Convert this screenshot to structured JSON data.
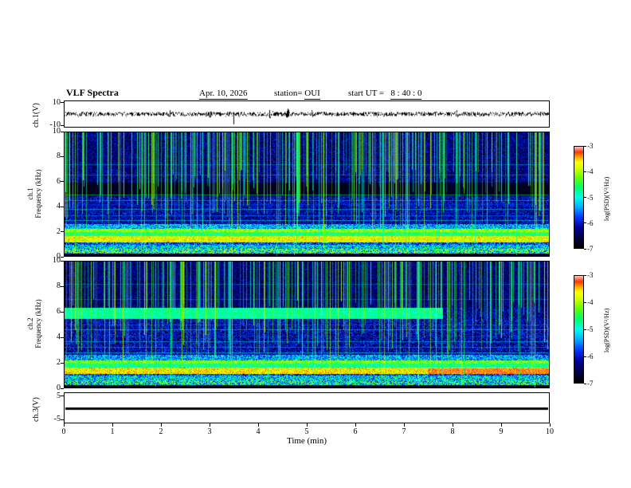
{
  "header": {
    "title": "VLF Spectra",
    "date": "Apr. 10, 2026",
    "station_prefix": "station=",
    "station_value": "OUI",
    "ut_prefix": "start UT = ",
    "ut_value": "8 : 40 : 0"
  },
  "x_axis": {
    "label": "Time (min)",
    "ticks": [
      "0",
      "1",
      "2",
      "3",
      "4",
      "5",
      "6",
      "7",
      "8",
      "9",
      "10"
    ],
    "range": [
      0,
      10
    ]
  },
  "panels": {
    "ch1_wave": {
      "ylabel": "ch.1(V)",
      "ylim": [
        -10,
        10
      ],
      "yticks": [
        {
          "v": "10",
          "f": 0.08
        },
        {
          "v": "-10",
          "f": 0.92
        }
      ]
    },
    "ch1_spec": {
      "ylabel_lines": [
        "ch.1",
        "Frequency (kHz)"
      ],
      "ylim": [
        0,
        10
      ],
      "yticks": [
        {
          "v": "10",
          "f": 0
        },
        {
          "v": "8",
          "f": 0.2
        },
        {
          "v": "6",
          "f": 0.4
        },
        {
          "v": "4",
          "f": 0.6
        },
        {
          "v": "2",
          "f": 0.8
        },
        {
          "v": "0",
          "f": 1
        }
      ]
    },
    "ch2_spec": {
      "ylabel_lines": [
        "ch.2",
        "Frequency (kHz)"
      ],
      "ylim": [
        0,
        10
      ],
      "yticks": [
        {
          "v": "10",
          "f": 0
        },
        {
          "v": "8",
          "f": 0.2
        },
        {
          "v": "6",
          "f": 0.4
        },
        {
          "v": "4",
          "f": 0.6
        },
        {
          "v": "2",
          "f": 0.8
        },
        {
          "v": "0",
          "f": 1
        }
      ]
    },
    "ch3": {
      "ylabel": "ch.3(V)",
      "ylim": [
        -5,
        5
      ],
      "yticks": [
        {
          "v": "5",
          "f": 0.12
        },
        {
          "v": "-5",
          "f": 0.88
        }
      ]
    }
  },
  "colorbars": [
    {
      "label": "log(PSD)(V²/Hz)",
      "ticks": [
        {
          "v": "-3",
          "f": 0
        },
        {
          "v": "-4",
          "f": 0.25
        },
        {
          "v": "-5",
          "f": 0.5
        },
        {
          "v": "-6",
          "f": 0.75
        },
        {
          "v": "-7",
          "f": 1
        }
      ]
    },
    {
      "label": "log(PSD)(V²/Hz)",
      "ticks": [
        {
          "v": "-3",
          "f": 0
        },
        {
          "v": "-4",
          "f": 0.25
        },
        {
          "v": "-5",
          "f": 0.5
        },
        {
          "v": "-6",
          "f": 0.75
        },
        {
          "v": "-7",
          "f": 1
        }
      ]
    }
  ],
  "spectrogram_palette": [
    {
      "t": 0.0,
      "c": "#000000"
    },
    {
      "t": 0.1,
      "c": "#000044"
    },
    {
      "t": 0.2,
      "c": "#000099"
    },
    {
      "t": 0.3,
      "c": "#0033ff"
    },
    {
      "t": 0.4,
      "c": "#00aaff"
    },
    {
      "t": 0.5,
      "c": "#00ffee"
    },
    {
      "t": 0.6,
      "c": "#00ff66"
    },
    {
      "t": 0.7,
      "c": "#66ff00"
    },
    {
      "t": 0.78,
      "c": "#ccff00"
    },
    {
      "t": 0.85,
      "c": "#ffff00"
    },
    {
      "t": 0.9,
      "c": "#ffaa00"
    },
    {
      "t": 0.95,
      "c": "#ff3300"
    },
    {
      "t": 1.0,
      "c": "#ffbbbb"
    }
  ],
  "chart_data": [
    {
      "type": "line",
      "name": "ch1_waveform",
      "ylabel": "ch.1(V)",
      "xlim": [
        0,
        10
      ],
      "ylim": [
        -10,
        10
      ],
      "base_amplitude_v": 1.7,
      "bursts": [
        {
          "pos": 0.218,
          "width": 0.014,
          "amp": 3.6
        },
        {
          "pos": 0.3,
          "width": 0.01,
          "amp": 3.0
        },
        {
          "pos": 0.425,
          "width": 0.012,
          "amp": 4.2
        },
        {
          "pos": 0.46,
          "width": 0.01,
          "amp": 4.5
        },
        {
          "pos": 0.51,
          "width": 0.008,
          "amp": 3.2
        },
        {
          "pos": 0.81,
          "width": 0.012,
          "amp": 3.4
        }
      ],
      "spikes": [
        {
          "pos": 0.348,
          "v": -8
        }
      ]
    },
    {
      "type": "heatmap",
      "name": "ch1_spectrogram",
      "ylabel": "ch.1 Frequency (kHz)",
      "xlabel": "Time (min)",
      "xlim": [
        0,
        10
      ],
      "ylim": [
        0,
        10
      ],
      "colorbar": {
        "label": "log(PSD)(V²/Hz)",
        "ticks": [
          -3,
          -4,
          -5,
          -6,
          -7
        ]
      },
      "base_level": 0.17,
      "noise": 0.1,
      "bands": [
        {
          "f0": 0.0,
          "f1": 0.25,
          "level": 0.06,
          "var": 0.05
        },
        {
          "f0": 0.25,
          "f1": 0.6,
          "level": 0.55,
          "var": 0.3
        },
        {
          "f0": 0.6,
          "f1": 0.95,
          "level": 0.45,
          "var": 0.22
        },
        {
          "f0": 0.95,
          "f1": 1.15,
          "level": 0.3,
          "var": 0.18
        },
        {
          "f0": 1.15,
          "f1": 1.65,
          "level": 0.82,
          "var": 0.1
        },
        {
          "f0": 1.65,
          "f1": 1.95,
          "level": 0.6,
          "var": 0.12
        },
        {
          "f0": 1.95,
          "f1": 2.25,
          "level": 0.72,
          "var": 0.1
        },
        {
          "f0": 2.25,
          "f1": 2.6,
          "level": 0.42,
          "var": 0.18
        },
        {
          "f0": 2.6,
          "f1": 4.85,
          "level": 0.2,
          "var": 0.14
        },
        {
          "f0": 4.85,
          "f1": 5.95,
          "level": 0.05,
          "var": 0.05
        },
        {
          "f0": 5.95,
          "f1": 10.01,
          "level": 0.16,
          "var": 0.13
        }
      ],
      "hlines": [
        {
          "f": 2.9,
          "level": 0.5,
          "alpha": 0.5
        },
        {
          "f": 3.3,
          "level": 0.35,
          "alpha": 0.6
        },
        {
          "f": 3.8,
          "level": 0.45,
          "alpha": 0.5
        },
        {
          "f": 4.2,
          "level": 0.3,
          "alpha": 0.6
        },
        {
          "f": 4.5,
          "level": 0.55,
          "alpha": 0.4
        },
        {
          "f": 5.0,
          "level": 0.6,
          "alpha": 0.5
        },
        {
          "f": 6.6,
          "level": 0.4,
          "alpha": 0.4
        },
        {
          "f": 7.4,
          "level": 0.45,
          "alpha": 0.35
        }
      ],
      "vstreaks": {
        "count": 300,
        "level_min": 0.5,
        "level_max": 0.78
      }
    },
    {
      "type": "heatmap",
      "name": "ch2_spectrogram",
      "ylabel": "ch.2 Frequency (kHz)",
      "xlabel": "Time (min)",
      "xlim": [
        0,
        10
      ],
      "ylim": [
        0,
        10
      ],
      "colorbar": {
        "label": "log(PSD)(V²/Hz)",
        "ticks": [
          -3,
          -4,
          -5,
          -6,
          -7
        ]
      },
      "base_level": 0.17,
      "noise": 0.1,
      "bands": [
        {
          "f0": 0.0,
          "f1": 0.25,
          "level": 0.06,
          "var": 0.05
        },
        {
          "f0": 0.25,
          "f1": 0.6,
          "level": 0.5,
          "var": 0.3
        },
        {
          "f0": 0.6,
          "f1": 0.95,
          "level": 0.45,
          "var": 0.22
        },
        {
          "f0": 0.95,
          "f1": 1.1,
          "level": 0.3,
          "var": 0.18
        },
        {
          "f0": 1.1,
          "f1": 1.6,
          "level": 0.84,
          "var": 0.1
        },
        {
          "f0": 1.1,
          "f1": 1.55,
          "level": 0.93,
          "var": 0.06,
          "xmin": 0.75
        },
        {
          "f0": 1.6,
          "f1": 1.95,
          "level": 0.58,
          "var": 0.12
        },
        {
          "f0": 1.95,
          "f1": 2.2,
          "level": 0.7,
          "var": 0.1
        },
        {
          "f0": 2.2,
          "f1": 2.6,
          "level": 0.4,
          "var": 0.18
        },
        {
          "f0": 2.6,
          "f1": 5.45,
          "level": 0.2,
          "var": 0.15
        },
        {
          "f0": 5.45,
          "f1": 6.35,
          "level": 0.56,
          "var": 0.08,
          "xmax": 0.78
        },
        {
          "f0": 5.45,
          "f1": 6.35,
          "level": 0.18,
          "var": 0.14,
          "xmin": 0.78
        },
        {
          "f0": 6.35,
          "f1": 10.01,
          "level": 0.15,
          "var": 0.12
        }
      ],
      "hlines": [
        {
          "f": 2.8,
          "level": 0.5,
          "alpha": 0.5
        },
        {
          "f": 3.2,
          "level": 0.4,
          "alpha": 0.5
        },
        {
          "f": 3.7,
          "level": 0.45,
          "alpha": 0.5
        },
        {
          "f": 4.1,
          "level": 0.3,
          "alpha": 0.6
        },
        {
          "f": 4.6,
          "level": 0.5,
          "alpha": 0.45
        },
        {
          "f": 5.0,
          "level": 0.35,
          "alpha": 0.5
        },
        {
          "f": 7.0,
          "level": 0.4,
          "alpha": 0.35
        },
        {
          "f": 8.2,
          "level": 0.45,
          "alpha": 0.3
        }
      ],
      "vstreaks": {
        "count": 260,
        "level_min": 0.5,
        "level_max": 0.78
      }
    },
    {
      "type": "line",
      "name": "ch3_waveform",
      "ylabel": "ch.3(V)",
      "xlim": [
        0,
        10
      ],
      "ylim": [
        -5,
        5
      ],
      "value": 0
    }
  ]
}
